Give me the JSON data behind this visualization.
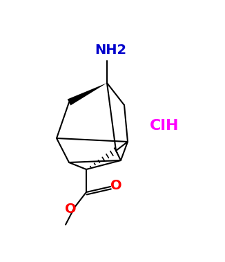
{
  "bg_color": "#ffffff",
  "nh2_label": "NH2",
  "nh2_color": "#0000cc",
  "nh2_fontsize": 14,
  "clh_label": "ClH",
  "clh_color": "#ff00ff",
  "clh_fontsize": 16,
  "o_double_label": "O",
  "o_double_color": "#ff0000",
  "o_double_fontsize": 14,
  "o_single_label": "O",
  "o_single_color": "#ff0000",
  "o_single_fontsize": 14,
  "line_color": "#000000",
  "line_width": 1.5,
  "figsize": [
    3.26,
    3.79
  ],
  "dpi": 100
}
